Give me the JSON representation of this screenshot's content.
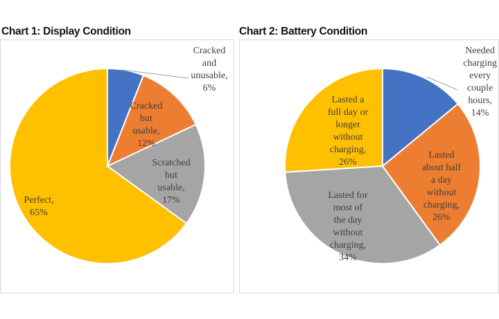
{
  "chart_data": [
    {
      "type": "pie",
      "title": "Chart 1: Display Condition",
      "start_angle_deg": 0,
      "direction": "clockwise",
      "slices": [
        {
          "label": "Cracked and unusable",
          "value": 6,
          "display": "Cracked\nand\nunusable,\n6%",
          "color": "#4472c4"
        },
        {
          "label": "Cracked but usable",
          "value": 12,
          "display": "Cracked\nbut\nusable,\n12%",
          "color": "#ed7d31"
        },
        {
          "label": "Scratched but usable",
          "value": 17,
          "display": "Scratched\nbut\nusable,\n17%",
          "color": "#a5a5a5"
        },
        {
          "label": "Perfect",
          "value": 65,
          "display": "Perfect,\n65%",
          "color": "#ffc000"
        }
      ]
    },
    {
      "type": "pie",
      "title": "Chart 2: Battery Condition",
      "start_angle_deg": 0,
      "direction": "clockwise",
      "slices": [
        {
          "label": "Needed charging every couple hours",
          "value": 14,
          "display": "Needed\ncharging\nevery\ncouple\nhours,\n14%",
          "color": "#4472c4"
        },
        {
          "label": "Lasted about half a day without charging",
          "value": 26,
          "display": "Lasted\nabout half\na day\nwithout\ncharging,\n26%",
          "color": "#ed7d31"
        },
        {
          "label": "Lasted for most of the day without charging",
          "value": 34,
          "display": "Lasted for\nmost of\nthe day\nwithout\ncharging,\n34%",
          "color": "#a5a5a5"
        },
        {
          "label": "Lasted a full day or longer without charging",
          "value": 26,
          "display": "Lasted a\nfull day or\nlonger\nwithout\ncharging,\n26%",
          "color": "#ffc000"
        }
      ]
    }
  ]
}
